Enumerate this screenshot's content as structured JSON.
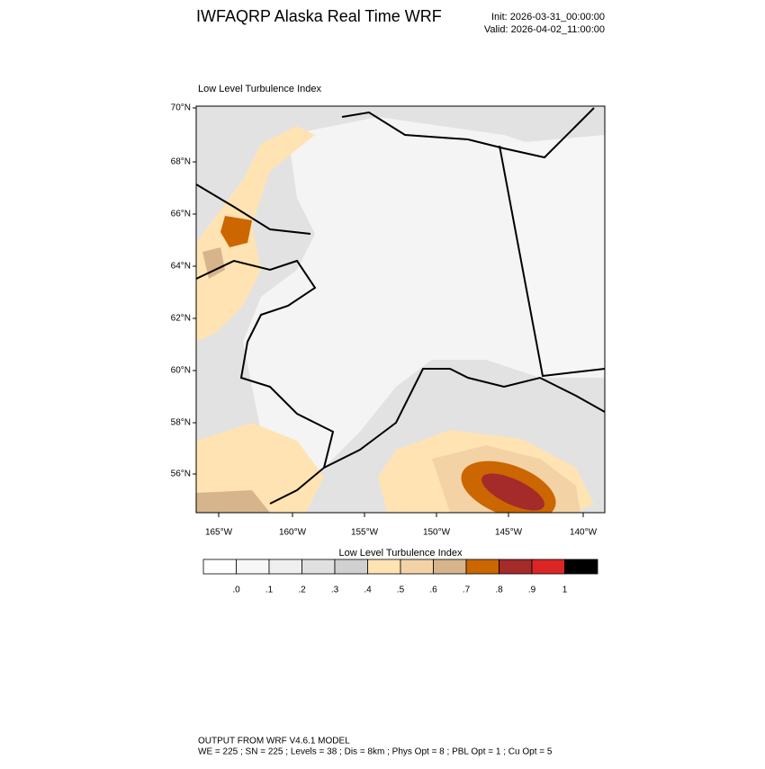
{
  "header": {
    "title": "IWFAQRP Alaska Real Time WRF",
    "init": "Init: 2026-03-31_00:00:00",
    "valid": "Valid: 2026-04-02_11:00:00"
  },
  "map": {
    "title": "Low Level Turbulence Index",
    "lat_labels": [
      "70°N",
      "68°N",
      "66°N",
      "64°N",
      "62°N",
      "60°N",
      "58°N",
      "56°N"
    ],
    "lon_labels": [
      "165°W",
      "160°W",
      "155°W",
      "150°W",
      "145°W",
      "140°W"
    ]
  },
  "colorbar": {
    "title": "Low Level Turbulence Index",
    "colors": [
      "#ffffff",
      "#f7f7f7",
      "#efefef",
      "#e0e0e0",
      "#d0d0d0",
      "#ffe3b3",
      "#f3d3a6",
      "#d6b48c",
      "#cc6600",
      "#a52a2a",
      "#dc2626",
      "#000000"
    ],
    "labels": [
      ".0",
      ".1",
      ".2",
      ".3",
      ".4",
      ".5",
      ".6",
      ".7",
      ".8",
      ".9",
      "1"
    ]
  },
  "footer": {
    "line1": "OUTPUT FROM WRF V4.6.1 MODEL",
    "line2": "WE = 225 ; SN = 225 ; Levels = 38 ; Dis = 8km ; Phys Opt = 8 ; PBL Opt = 1 ; Cu Opt = 5"
  }
}
